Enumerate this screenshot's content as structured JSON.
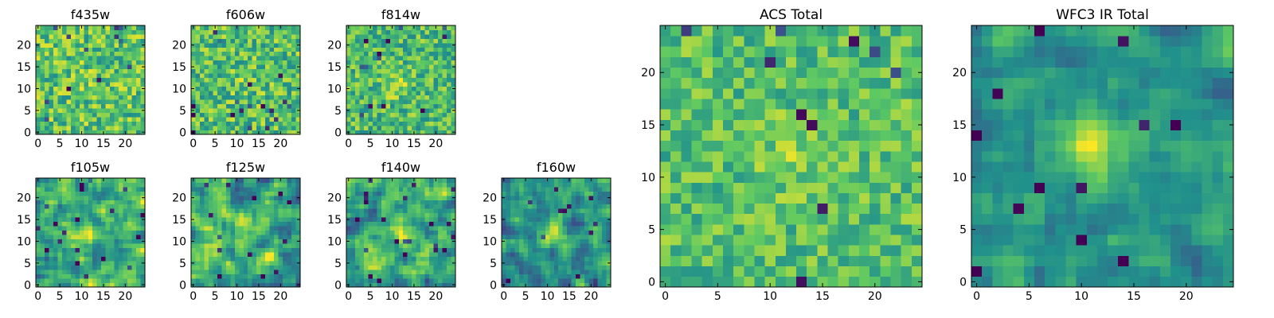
{
  "figure": {
    "background": "#ffffff"
  },
  "colormap": {
    "name": "viridis",
    "stops": [
      "#440154",
      "#3b528b",
      "#21918c",
      "#5ec962",
      "#fde725"
    ]
  },
  "chart_data": [
    {
      "type": "heatmap",
      "title": "f435w",
      "grid_size": 25,
      "xlim": [
        0,
        24
      ],
      "ylim": [
        0,
        24
      ],
      "xticks": [
        "0",
        "5",
        "10",
        "15",
        "20"
      ],
      "yticks": [
        "0",
        "5",
        "10",
        "15",
        "20"
      ],
      "value_range": [
        0,
        1
      ],
      "center": [
        12,
        12
      ],
      "peak": 0.05,
      "smooth": 0,
      "noise": 0.24,
      "base": 0.72,
      "seed": 11
    },
    {
      "type": "heatmap",
      "title": "f606w",
      "grid_size": 25,
      "xlim": [
        0,
        24
      ],
      "ylim": [
        0,
        24
      ],
      "xticks": [
        "0",
        "5",
        "10",
        "15",
        "20"
      ],
      "yticks": [
        "0",
        "5",
        "10",
        "15",
        "20"
      ],
      "value_range": [
        0,
        1
      ],
      "center": [
        12,
        12
      ],
      "peak": 0.08,
      "smooth": 0,
      "noise": 0.24,
      "base": 0.7,
      "seed": 23
    },
    {
      "type": "heatmap",
      "title": "f814w",
      "grid_size": 25,
      "xlim": [
        0,
        24
      ],
      "ylim": [
        0,
        24
      ],
      "xticks": [
        "0",
        "5",
        "10",
        "15",
        "20"
      ],
      "yticks": [
        "0",
        "5",
        "10",
        "15",
        "20"
      ],
      "value_range": [
        0,
        1
      ],
      "center": [
        11,
        11
      ],
      "peak": 0.18,
      "smooth": 0,
      "noise": 0.22,
      "base": 0.68,
      "seed": 37
    },
    {
      "type": "heatmap",
      "title": "f105w",
      "grid_size": 25,
      "xlim": [
        0,
        24
      ],
      "ylim": [
        0,
        24
      ],
      "xticks": [
        "0",
        "5",
        "10",
        "15",
        "20"
      ],
      "yticks": [
        "0",
        "5",
        "10",
        "15",
        "20"
      ],
      "value_range": [
        0,
        1
      ],
      "center": [
        11,
        12
      ],
      "peak": 0.25,
      "smooth": 1,
      "noise": 0.3,
      "base": 0.62,
      "seed": 41
    },
    {
      "type": "heatmap",
      "title": "f125w",
      "grid_size": 25,
      "xlim": [
        0,
        24
      ],
      "ylim": [
        0,
        24
      ],
      "xticks": [
        "0",
        "5",
        "10",
        "15",
        "20"
      ],
      "yticks": [
        "0",
        "5",
        "10",
        "15",
        "20"
      ],
      "value_range": [
        0,
        1
      ],
      "center": [
        12,
        12
      ],
      "peak": 0.15,
      "smooth": 1,
      "noise": 0.3,
      "base": 0.62,
      "seed": 53
    },
    {
      "type": "heatmap",
      "title": "f140w",
      "grid_size": 25,
      "xlim": [
        0,
        24
      ],
      "ylim": [
        0,
        24
      ],
      "xticks": [
        "0",
        "5",
        "10",
        "15",
        "20"
      ],
      "yticks": [
        "0",
        "5",
        "10",
        "15",
        "20"
      ],
      "value_range": [
        0,
        1
      ],
      "center": [
        11,
        13
      ],
      "peak": 0.22,
      "smooth": 1,
      "noise": 0.3,
      "base": 0.62,
      "seed": 67
    },
    {
      "type": "heatmap",
      "title": "f160w",
      "grid_size": 25,
      "xlim": [
        0,
        24
      ],
      "ylim": [
        0,
        24
      ],
      "xticks": [
        "0",
        "5",
        "10",
        "15",
        "20"
      ],
      "yticks": [
        "0",
        "5",
        "10",
        "15",
        "20"
      ],
      "value_range": [
        0,
        1
      ],
      "center": [
        11,
        12
      ],
      "peak": 0.42,
      "smooth": 1,
      "noise": 0.26,
      "base": 0.52,
      "seed": 79
    },
    {
      "type": "heatmap",
      "title": "ACS Total",
      "grid_size": 25,
      "xlim": [
        0,
        24
      ],
      "ylim": [
        0,
        24
      ],
      "xticks": [
        "0",
        "5",
        "10",
        "15",
        "20"
      ],
      "yticks": [
        "0",
        "5",
        "10",
        "15",
        "20"
      ],
      "value_range": [
        0,
        1
      ],
      "center": [
        12,
        12
      ],
      "peak": 0.12,
      "smooth": 0,
      "noise": 0.18,
      "base": 0.7,
      "seed": 97
    },
    {
      "type": "heatmap",
      "title": "WFC3 IR Total",
      "grid_size": 25,
      "xlim": [
        0,
        24
      ],
      "ylim": [
        0,
        24
      ],
      "xticks": [
        "0",
        "5",
        "10",
        "15",
        "20"
      ],
      "yticks": [
        "0",
        "5",
        "10",
        "15",
        "20"
      ],
      "value_range": [
        0,
        1
      ],
      "center": [
        11,
        13
      ],
      "peak": 0.38,
      "smooth": 1,
      "noise": 0.18,
      "base": 0.52,
      "seed": 113
    }
  ]
}
